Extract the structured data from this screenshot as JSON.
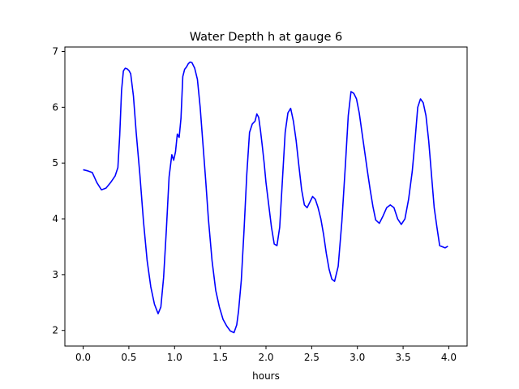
{
  "chart_data": {
    "type": "line",
    "title": "Water Depth h at gauge 6",
    "xlabel": "hours",
    "ylabel": "",
    "xlim": [
      -0.2,
      4.2
    ],
    "ylim": [
      1.72,
      7.08
    ],
    "grid": false,
    "xticks": [
      0.0,
      0.5,
      1.0,
      1.5,
      2.0,
      2.5,
      3.0,
      3.5,
      4.0
    ],
    "xtick_labels": [
      "0.0",
      "0.5",
      "1.0",
      "1.5",
      "2.0",
      "2.5",
      "3.0",
      "3.5",
      "4.0"
    ],
    "yticks": [
      2,
      3,
      4,
      5,
      6,
      7
    ],
    "ytick_labels": [
      "2",
      "3",
      "4",
      "5",
      "6",
      "7"
    ],
    "series": [
      {
        "name": "",
        "color": "#0000ff",
        "x": [
          0.0,
          0.05,
          0.1,
          0.15,
          0.2,
          0.25,
          0.3,
          0.35,
          0.38,
          0.4,
          0.42,
          0.44,
          0.46,
          0.48,
          0.5,
          0.52,
          0.55,
          0.58,
          0.62,
          0.66,
          0.7,
          0.74,
          0.78,
          0.82,
          0.85,
          0.88,
          0.91,
          0.94,
          0.97,
          0.99,
          1.01,
          1.03,
          1.05,
          1.07,
          1.09,
          1.11,
          1.13,
          1.15,
          1.17,
          1.19,
          1.22,
          1.25,
          1.28,
          1.31,
          1.34,
          1.37,
          1.41,
          1.45,
          1.49,
          1.53,
          1.57,
          1.61,
          1.65,
          1.68,
          1.7,
          1.73,
          1.76,
          1.79,
          1.82,
          1.85,
          1.88,
          1.9,
          1.92,
          1.94,
          1.96,
          1.98,
          2.0,
          2.03,
          2.06,
          2.09,
          2.12,
          2.15,
          2.18,
          2.21,
          2.24,
          2.27,
          2.3,
          2.33,
          2.36,
          2.39,
          2.42,
          2.45,
          2.48,
          2.51,
          2.54,
          2.57,
          2.6,
          2.63,
          2.66,
          2.69,
          2.72,
          2.75,
          2.79,
          2.83,
          2.87,
          2.9,
          2.93,
          2.96,
          2.99,
          3.02,
          3.05,
          3.08,
          3.11,
          3.14,
          3.17,
          3.2,
          3.24,
          3.28,
          3.32,
          3.36,
          3.4,
          3.44,
          3.48,
          3.52,
          3.56,
          3.6,
          3.63,
          3.66,
          3.69,
          3.72,
          3.75,
          3.78,
          3.8,
          3.82,
          3.84,
          3.87,
          3.9,
          3.93,
          3.96,
          3.99
        ],
        "y": [
          4.88,
          4.86,
          4.83,
          4.65,
          4.52,
          4.55,
          4.65,
          4.77,
          4.92,
          5.5,
          6.3,
          6.65,
          6.7,
          6.69,
          6.66,
          6.6,
          6.2,
          5.55,
          4.8,
          3.95,
          3.25,
          2.78,
          2.47,
          2.3,
          2.42,
          2.95,
          3.8,
          4.75,
          5.15,
          5.05,
          5.2,
          5.52,
          5.46,
          5.8,
          6.55,
          6.68,
          6.72,
          6.78,
          6.81,
          6.8,
          6.7,
          6.5,
          6.0,
          5.35,
          4.7,
          4.0,
          3.25,
          2.72,
          2.42,
          2.2,
          2.08,
          1.99,
          1.96,
          2.1,
          2.35,
          2.9,
          3.8,
          4.8,
          5.55,
          5.7,
          5.75,
          5.88,
          5.82,
          5.58,
          5.3,
          5.0,
          4.65,
          4.25,
          3.85,
          3.55,
          3.52,
          3.85,
          4.7,
          5.55,
          5.9,
          5.98,
          5.75,
          5.4,
          4.95,
          4.52,
          4.25,
          4.2,
          4.3,
          4.4,
          4.35,
          4.2,
          4.0,
          3.72,
          3.38,
          3.1,
          2.92,
          2.88,
          3.15,
          3.95,
          5.0,
          5.85,
          6.28,
          6.25,
          6.15,
          5.9,
          5.55,
          5.2,
          4.85,
          4.52,
          4.22,
          3.98,
          3.92,
          4.05,
          4.2,
          4.25,
          4.2,
          4.0,
          3.9,
          4.0,
          4.35,
          4.85,
          5.4,
          6.0,
          6.15,
          6.08,
          5.85,
          5.4,
          5.0,
          4.6,
          4.2,
          3.85,
          3.52,
          3.5,
          3.48,
          3.51
        ]
      }
    ]
  }
}
